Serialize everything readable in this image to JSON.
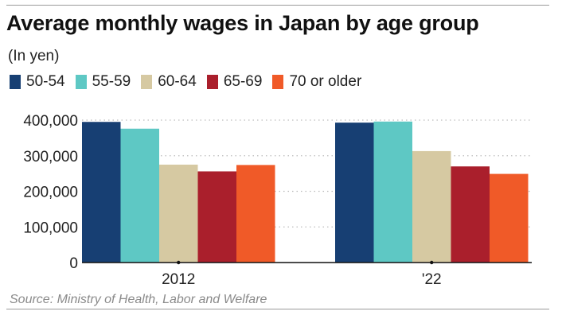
{
  "chart_data": {
    "type": "bar",
    "title": "Average monthly wages in Japan by age group",
    "subtitle": "(In yen)",
    "xlabel": "",
    "ylabel": "",
    "categories": [
      "2012",
      "'22"
    ],
    "series": [
      {
        "name": "50-54",
        "color": "#173f73",
        "values": [
          395000,
          393000
        ]
      },
      {
        "name": "55-59",
        "color": "#5ec8c4",
        "values": [
          376000,
          396000
        ]
      },
      {
        "name": "60-64",
        "color": "#d6c9a2",
        "values": [
          275000,
          313000
        ]
      },
      {
        "name": "65-69",
        "color": "#aa1f2c",
        "values": [
          256000,
          270000
        ]
      },
      {
        "name": "70 or older",
        "color": "#f05a28",
        "values": [
          274000,
          249000
        ]
      }
    ],
    "ylim": [
      0,
      400000
    ],
    "yticks": [
      0,
      100000,
      200000,
      300000,
      400000
    ],
    "ytick_labels": [
      "0",
      "100,000",
      "200,000",
      "300,000",
      "400,000"
    ],
    "grid": true,
    "legend": "top-left",
    "source": "Source: Ministry of Health, Labor and Welfare"
  }
}
